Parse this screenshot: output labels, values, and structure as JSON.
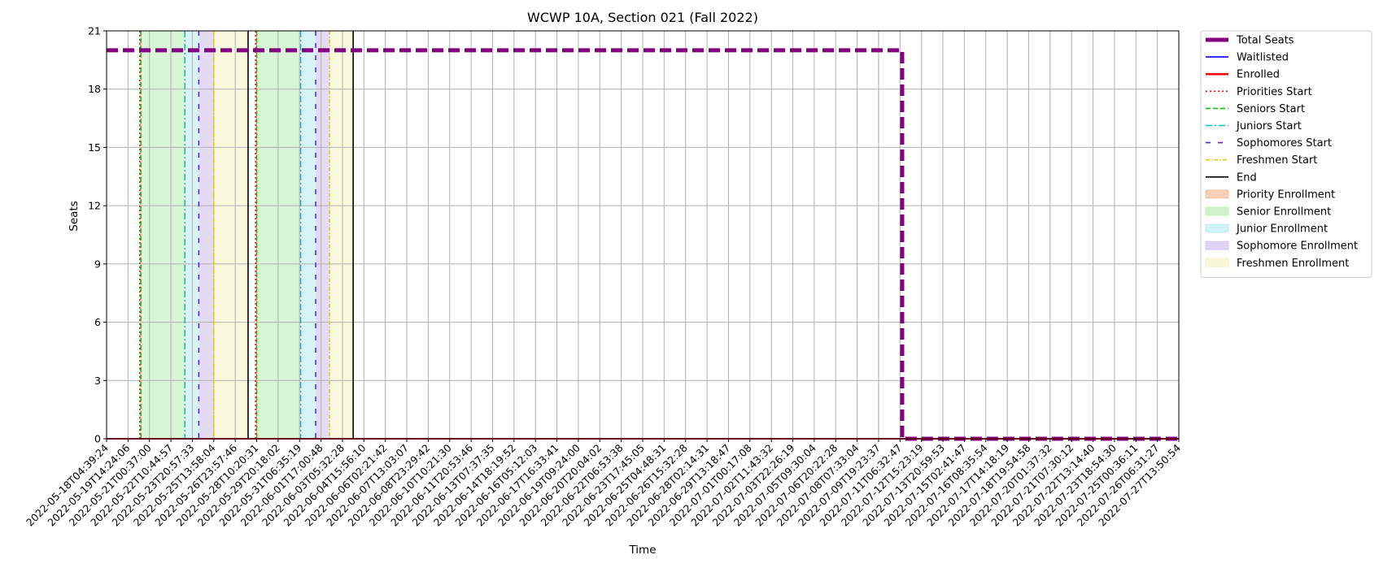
{
  "chart_data": {
    "type": "line",
    "title": "WCWP 10A, Section 021 (Fall 2022)",
    "xlabel": "Time",
    "ylabel": "Seats",
    "ylim": [
      0,
      21
    ],
    "yticks": [
      0,
      3,
      6,
      9,
      12,
      15,
      18,
      21
    ],
    "grid": true,
    "legend_placement": "outside-right-top",
    "xticks": [
      "2022-05-18T04:39:24",
      "2022-05-19T14:24:06",
      "2022-05-21T00:37:00",
      "2022-05-22T10:44:57",
      "2022-05-23T20:57:33",
      "2022-05-25T13:58:04",
      "2022-05-26T23:57:46",
      "2022-05-28T10:20:31",
      "2022-05-29T20:18:02",
      "2022-05-31T06:35:19",
      "2022-06-01T17:00:48",
      "2022-06-03T05:32:28",
      "2022-06-04T15:56:10",
      "2022-06-06T02:21:42",
      "2022-06-07T13:03:07",
      "2022-06-08T23:29:42",
      "2022-06-10T10:21:30",
      "2022-06-11T20:53:46",
      "2022-06-13T07:37:35",
      "2022-06-14T18:19:52",
      "2022-06-16T05:12:03",
      "2022-06-17T16:33:41",
      "2022-06-19T09:24:00",
      "2022-06-20T20:04:02",
      "2022-06-22T06:53:38",
      "2022-06-23T17:45:05",
      "2022-06-25T04:48:31",
      "2022-06-26T15:32:28",
      "2022-06-28T02:14:31",
      "2022-06-29T13:18:47",
      "2022-07-01T00:17:08",
      "2022-07-02T11:43:32",
      "2022-07-03T22:26:19",
      "2022-07-05T09:30:04",
      "2022-07-06T20:22:28",
      "2022-07-08T07:33:04",
      "2022-07-09T19:23:37",
      "2022-07-11T06:32:47",
      "2022-07-12T15:23:19",
      "2022-07-13T20:59:53",
      "2022-07-15T02:41:47",
      "2022-07-16T08:35:54",
      "2022-07-17T14:18:19",
      "2022-07-18T19:54:58",
      "2022-07-20T01:37:32",
      "2022-07-21T07:30:12",
      "2022-07-22T13:14:40",
      "2022-07-23T18:54:30",
      "2022-07-25T00:36:11",
      "2022-07-26T06:31:27",
      "2022-07-27T13:50:54"
    ],
    "series": [
      {
        "name": "Total Seats",
        "color": "#800080",
        "style": "dashed-thick",
        "x_index": [
          0,
          37.1,
          37.1,
          50
        ],
        "values": [
          20,
          20,
          0,
          0
        ]
      },
      {
        "name": "Waitlisted",
        "color": "#0000ff",
        "style": "solid",
        "x_index": [
          0,
          50
        ],
        "values": [
          0,
          0
        ]
      },
      {
        "name": "Enrolled",
        "color": "#ff0000",
        "style": "solid",
        "x_index": [
          0,
          50
        ],
        "values": [
          0,
          0
        ]
      }
    ],
    "vertical_markers": [
      {
        "name": "Priorities Start",
        "color": "#ff0000",
        "dash": "dotted",
        "x_index": [
          1.55,
          6.95
        ]
      },
      {
        "name": "Seniors Start",
        "color": "#00cc00",
        "dash": "dashed",
        "x_index": [
          1.6,
          7.0
        ]
      },
      {
        "name": "Juniors Start",
        "color": "#00bcd4",
        "dash": "dashdot",
        "x_index": [
          3.65,
          9.05
        ]
      },
      {
        "name": "Sophomores Start",
        "color": "#5a1fd6",
        "dash": "loose-dashed",
        "x_index": [
          4.3,
          9.75
        ]
      },
      {
        "name": "Freshmen Start",
        "color": "#e6c800",
        "dash": "dashdot-small",
        "x_index": [
          5.0,
          10.4
        ]
      },
      {
        "name": "End",
        "color": "#000000",
        "dash": "solid",
        "x_index": [
          6.6,
          11.5
        ]
      }
    ],
    "shaded_regions": [
      {
        "name": "Priority Enrollment",
        "color": "#f4c3a8",
        "ranges": [
          [
            1.55,
            1.6
          ],
          [
            6.95,
            7.0
          ]
        ]
      },
      {
        "name": "Senior Enrollment",
        "color": "#c3efbe",
        "ranges": [
          [
            1.6,
            3.65
          ],
          [
            7.0,
            9.05
          ]
        ]
      },
      {
        "name": "Junior Enrollment",
        "color": "#c4eef2",
        "ranges": [
          [
            3.65,
            4.3
          ],
          [
            9.05,
            9.75
          ]
        ]
      },
      {
        "name": "Sophomore Enrollment",
        "color": "#d8c8f2",
        "ranges": [
          [
            4.3,
            5.0
          ],
          [
            9.75,
            10.4
          ]
        ]
      },
      {
        "name": "Freshmen Enrollment",
        "color": "#f6f6cc",
        "ranges": [
          [
            5.0,
            6.6
          ],
          [
            10.4,
            11.5
          ]
        ]
      }
    ],
    "legend": [
      {
        "label": "Total Seats",
        "kind": "line",
        "color": "#800080",
        "dash": "thick"
      },
      {
        "label": "Waitlisted",
        "kind": "line",
        "color": "#0000ff",
        "dash": "solid"
      },
      {
        "label": "Enrolled",
        "kind": "line",
        "color": "#ff0000",
        "dash": "solid-bold"
      },
      {
        "label": "Priorities Start",
        "kind": "line",
        "color": "#ff0000",
        "dash": "dotted"
      },
      {
        "label": "Seniors Start",
        "kind": "line",
        "color": "#00cc00",
        "dash": "dashed"
      },
      {
        "label": "Juniors Start",
        "kind": "line",
        "color": "#00bcd4",
        "dash": "dashdot"
      },
      {
        "label": "Sophomores Start",
        "kind": "line",
        "color": "#5a1fd6",
        "dash": "loose-dashed"
      },
      {
        "label": "Freshmen Start",
        "kind": "line",
        "color": "#e6c800",
        "dash": "dashdot-small"
      },
      {
        "label": "End",
        "kind": "line",
        "color": "#000000",
        "dash": "solid"
      },
      {
        "label": "Priority Enrollment",
        "kind": "patch",
        "color": "#f4c3a8"
      },
      {
        "label": "Senior Enrollment",
        "kind": "patch",
        "color": "#c3efbe"
      },
      {
        "label": "Junior Enrollment",
        "kind": "patch",
        "color": "#c4eef2"
      },
      {
        "label": "Sophomore Enrollment",
        "kind": "patch",
        "color": "#d8c8f2"
      },
      {
        "label": "Freshmen Enrollment",
        "kind": "patch",
        "color": "#f6f6cc"
      }
    ]
  }
}
